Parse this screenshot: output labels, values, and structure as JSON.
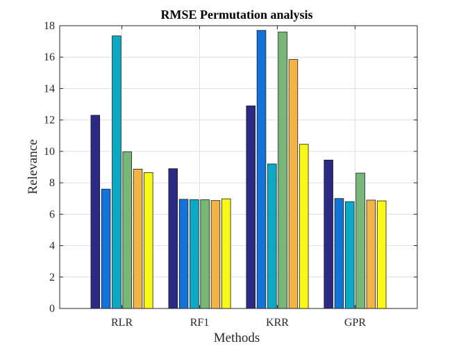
{
  "chart_data": {
    "type": "bar",
    "title": "RMSE Permutation analysis",
    "xlabel": "Methods",
    "ylabel": "Relevance",
    "categories": [
      "RLR",
      "RF1",
      "KRR",
      "GPR"
    ],
    "ylim": [
      0,
      18
    ],
    "yticks": [
      0,
      2,
      4,
      6,
      8,
      10,
      12,
      14,
      16,
      18
    ],
    "grid": true,
    "series_colors": [
      "#2d2a86",
      "#1274d8",
      "#0aa9c6",
      "#78b876",
      "#f2b447",
      "#f8f815"
    ],
    "series": [
      {
        "values": [
          12.3,
          8.9,
          12.9,
          9.45
        ]
      },
      {
        "values": [
          7.6,
          6.95,
          17.7,
          7.0
        ]
      },
      {
        "values": [
          17.35,
          6.93,
          9.2,
          6.8
        ]
      },
      {
        "values": [
          9.97,
          6.92,
          17.6,
          8.62
        ]
      },
      {
        "values": [
          8.87,
          6.87,
          15.85,
          6.9
        ]
      },
      {
        "values": [
          8.65,
          6.98,
          10.45,
          6.85
        ]
      }
    ]
  }
}
